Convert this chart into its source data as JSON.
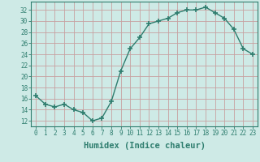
{
  "x": [
    0,
    1,
    2,
    3,
    4,
    5,
    6,
    7,
    8,
    9,
    10,
    11,
    12,
    13,
    14,
    15,
    16,
    17,
    18,
    19,
    20,
    21,
    22,
    23
  ],
  "y": [
    16.5,
    15.0,
    14.5,
    15.0,
    14.0,
    13.5,
    12.0,
    12.5,
    15.5,
    21.0,
    25.0,
    27.0,
    29.5,
    30.0,
    30.5,
    31.5,
    32.0,
    32.0,
    32.5,
    31.5,
    30.5,
    28.5,
    25.0,
    24.0
  ],
  "line_color": "#2e7d6e",
  "marker_color": "#2e7d6e",
  "bg_color": "#ceeae6",
  "grid_color": "#c8a0a0",
  "xlabel": "Humidex (Indice chaleur)",
  "xlim": [
    -0.5,
    23.5
  ],
  "ylim": [
    11,
    33.5
  ],
  "yticks": [
    12,
    14,
    16,
    18,
    20,
    22,
    24,
    26,
    28,
    30,
    32
  ],
  "xticks": [
    0,
    1,
    2,
    3,
    4,
    5,
    6,
    7,
    8,
    9,
    10,
    11,
    12,
    13,
    14,
    15,
    16,
    17,
    18,
    19,
    20,
    21,
    22,
    23
  ],
  "tick_label_fontsize": 5.5,
  "xlabel_fontsize": 7.5,
  "marker_size": 4,
  "line_width": 1.0
}
